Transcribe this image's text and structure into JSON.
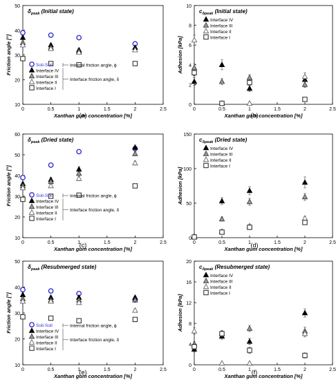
{
  "figure": {
    "panel_letters": [
      "(a)",
      "(b)",
      "(c)",
      "(d)",
      "(e)",
      "(f)"
    ],
    "colors": {
      "soil_soil": "#3333cc",
      "marker": "#000000",
      "open_marker": "#555555",
      "axis": "#000000",
      "text": "#000000"
    }
  },
  "chart_data": [
    {
      "panel": "(a)",
      "type": "scatter",
      "title": "δpeak (Initial state)",
      "title_symbol": "δ",
      "title_sub": "peak",
      "title_rest": " (Initial state)",
      "xlabel": "Xanthan gum concentration [%]",
      "ylabel": "Friction angle [°]",
      "xlim": [
        0,
        2.5
      ],
      "ylim": [
        10,
        50
      ],
      "xticks": [
        "0",
        "0.5",
        "1",
        "1.5",
        "2",
        "2.5"
      ],
      "yticks": [
        "10",
        "20",
        "30",
        "40",
        "50"
      ],
      "legend": "left-center",
      "bracket_labels": [
        "Internal friction angle, ϕ",
        "Interface friction angle, δ"
      ],
      "series": [
        {
          "name": "Soil-Soil",
          "marker": "circle-open-blue",
          "x": [
            0,
            0.5,
            1,
            2
          ],
          "y": [
            39,
            38,
            37,
            34.5
          ],
          "err": [
            0.8,
            0.8,
            0.8,
            0.8
          ]
        },
        {
          "name": "Interface IV",
          "marker": "triangle-filled",
          "x": [
            0,
            0.5,
            1,
            2
          ],
          "y": [
            37,
            34,
            32,
            33
          ],
          "err": [
            0.8,
            0.6,
            0.6,
            0.6
          ]
        },
        {
          "name": "Interface III",
          "marker": "triangle-gray",
          "x": [
            0,
            0.5,
            1,
            2
          ],
          "y": [
            35,
            33,
            31.5,
            32
          ],
          "err": [
            0.6,
            0.6,
            0.6,
            0.6
          ]
        },
        {
          "name": "Interface II",
          "marker": "triangle-open",
          "x": [
            0,
            0.5,
            1,
            2
          ],
          "y": [
            34,
            32.5,
            31,
            32
          ],
          "err": [
            0.6,
            0.6,
            0.6,
            0.6
          ]
        },
        {
          "name": "Interface I",
          "marker": "square-open",
          "x": [
            0,
            0.5,
            1,
            2
          ],
          "y": [
            28.5,
            26.5,
            26,
            26.5
          ],
          "err": [
            0.6,
            0.6,
            0.6,
            0.6
          ]
        }
      ]
    },
    {
      "panel": "(b)",
      "type": "scatter",
      "title": "cδpeak (Initial state)",
      "title_symbol": "c",
      "title_sub": "δpeak",
      "title_rest": " (Initial state)",
      "xlabel": "Xanthan gum concentration [%]",
      "ylabel": "Adhesion [kPa]",
      "xlim": [
        0,
        2.5
      ],
      "ylim": [
        0,
        10
      ],
      "xticks": [
        "0",
        "0.5",
        "1",
        "1.5",
        "2",
        "2.5"
      ],
      "yticks": [
        "0",
        "2",
        "4",
        "6",
        "8",
        "10"
      ],
      "legend": "top-center",
      "series": [
        {
          "name": "Interface IV",
          "marker": "triangle-filled",
          "x": [
            0,
            0.5,
            1,
            2
          ],
          "y": [
            2.3,
            4.0,
            1.6,
            2.5
          ],
          "err": [
            0.4,
            0.5,
            0.3,
            0.4
          ]
        },
        {
          "name": "Interface III",
          "marker": "triangle-gray",
          "x": [
            0,
            0.5,
            1,
            2
          ],
          "y": [
            3.7,
            2.3,
            2.7,
            2.0
          ],
          "err": [
            0.4,
            0.3,
            0.3,
            0.3
          ]
        },
        {
          "name": "Interface II",
          "marker": "triangle-open",
          "x": [
            0,
            0.5,
            1,
            2
          ],
          "y": [
            6.5,
            0.1,
            0.1,
            2.8
          ],
          "err": [
            0.5,
            0.1,
            0.1,
            0.4
          ]
        },
        {
          "name": "Interface I",
          "marker": "square-open",
          "x": [
            0,
            0.5,
            1,
            2
          ],
          "y": [
            3.2,
            0.1,
            2.2,
            0.5
          ],
          "err": [
            0.3,
            0.1,
            0.3,
            0.1
          ]
        }
      ]
    },
    {
      "panel": "(c)",
      "type": "scatter",
      "title": "δpeak (Dried state)",
      "title_symbol": "δ",
      "title_sub": "peak",
      "title_rest": " (Dried state)",
      "xlabel": "Xanthan gum concentration [%]",
      "ylabel": "Friction angle [°]",
      "xlim": [
        0,
        2.5
      ],
      "ylim": [
        10,
        60
      ],
      "xticks": [
        "0",
        "0.5",
        "1",
        "1.5",
        "2",
        "2.5"
      ],
      "yticks": [
        "10",
        "20",
        "30",
        "40",
        "50",
        "60"
      ],
      "legend": "bottom-left",
      "bracket_labels": [
        "Internal friction angle, ϕ",
        "Interface friction angle, δ"
      ],
      "series": [
        {
          "name": "Soil-Soil",
          "marker": "circle-open-blue",
          "x": [
            0,
            0.5,
            1,
            2
          ],
          "y": [
            39,
            45,
            51.5,
            53
          ],
          "err": [
            0.8,
            1.0,
            1.0,
            1.0
          ]
        },
        {
          "name": "Interface IV",
          "marker": "triangle-filled",
          "x": [
            0,
            0.5,
            1,
            2
          ],
          "y": [
            36,
            38,
            43,
            53.5
          ],
          "err": [
            0.8,
            1.0,
            1.2,
            1.2
          ]
        },
        {
          "name": "Interface III",
          "marker": "triangle-gray",
          "x": [
            0,
            0.5,
            1,
            2
          ],
          "y": [
            35,
            37,
            41,
            50.5
          ],
          "err": [
            0.8,
            1.0,
            1.0,
            1.0
          ]
        },
        {
          "name": "Interface II",
          "marker": "triangle-open",
          "x": [
            0,
            0.5,
            1,
            2
          ],
          "y": [
            34,
            35,
            38.5,
            46
          ],
          "err": [
            0.6,
            0.8,
            1.0,
            1.0
          ]
        },
        {
          "name": "Interface I",
          "marker": "square-open",
          "x": [
            0,
            0.5,
            1,
            2
          ],
          "y": [
            28.5,
            30,
            30.5,
            35
          ],
          "err": [
            0.6,
            0.8,
            0.8,
            0.8
          ]
        }
      ]
    },
    {
      "panel": "(d)",
      "type": "scatter",
      "title": "cδpeak (Dried state)",
      "title_symbol": "c",
      "title_sub": "δpeak",
      "title_rest": " (Dried state)",
      "xlabel": "Xanthan gum concentration [%]",
      "ylabel": "Adhesion [kPa]",
      "xlim": [
        0,
        2.5
      ],
      "ylim": [
        0,
        150
      ],
      "xticks": [
        "0",
        "0.5",
        "1",
        "1.5",
        "2",
        "2.5"
      ],
      "yticks": [
        "0",
        "50",
        "100",
        "150"
      ],
      "legend": "top-center",
      "series": [
        {
          "name": "Interface IV",
          "marker": "triangle-filled",
          "x": [
            0,
            0.5,
            1,
            2
          ],
          "y": [
            2,
            53,
            68,
            80
          ],
          "err": [
            1,
            5,
            6,
            8
          ]
        },
        {
          "name": "Interface III",
          "marker": "triangle-gray",
          "x": [
            0,
            0.5,
            1,
            2
          ],
          "y": [
            2,
            27,
            52,
            59
          ],
          "err": [
            1,
            3,
            5,
            5
          ]
        },
        {
          "name": "Interface II",
          "marker": "triangle-open",
          "x": [
            0,
            0.5,
            1,
            2
          ],
          "y": [
            1,
            9,
            17,
            28
          ],
          "err": [
            1,
            2,
            2,
            3
          ]
        },
        {
          "name": "Interface I",
          "marker": "square-open",
          "x": [
            0,
            0.5,
            1,
            2
          ],
          "y": [
            1,
            8,
            15,
            22
          ],
          "err": [
            1,
            2,
            2,
            2
          ]
        }
      ]
    },
    {
      "panel": "(e)",
      "type": "scatter",
      "title": "δpeak (Resubmerged state)",
      "title_symbol": "δ",
      "title_sub": "peak",
      "title_rest": " (Resubmerged state)",
      "xlabel": "Xanthan gum concentration [%]",
      "ylabel": "Friction angle [°]",
      "xlim": [
        0,
        2.5
      ],
      "ylim": [
        10,
        50
      ],
      "xticks": [
        "0",
        "0.5",
        "1",
        "1.5",
        "2",
        "2.5"
      ],
      "yticks": [
        "10",
        "20",
        "30",
        "40",
        "50"
      ],
      "legend": "left-center",
      "bracket_labels": [
        "Internal friction angle, ϕ",
        "Interface friction angle, δ"
      ],
      "series": [
        {
          "name": "Soil-Soil",
          "marker": "circle-open-blue",
          "x": [
            0,
            0.5,
            1,
            2
          ],
          "y": [
            39,
            38.5,
            37.5,
            35
          ],
          "err": [
            0.8,
            0.8,
            0.8,
            0.8
          ]
        },
        {
          "name": "Interface IV",
          "marker": "triangle-filled",
          "x": [
            0,
            0.5,
            1,
            2
          ],
          "y": [
            37,
            36,
            36,
            36
          ],
          "err": [
            0.8,
            0.6,
            0.6,
            0.6
          ]
        },
        {
          "name": "Interface III",
          "marker": "triangle-gray",
          "x": [
            0,
            0.5,
            1,
            2
          ],
          "y": [
            35.5,
            35,
            35,
            35
          ],
          "err": [
            0.6,
            0.6,
            0.6,
            0.6
          ]
        },
        {
          "name": "Interface II",
          "marker": "triangle-open",
          "x": [
            0,
            0.5,
            1,
            2
          ],
          "y": [
            34.5,
            34.5,
            34,
            31
          ],
          "err": [
            0.6,
            0.6,
            0.6,
            0.6
          ]
        },
        {
          "name": "Interface I",
          "marker": "square-open",
          "x": [
            0,
            0.5,
            1,
            2
          ],
          "y": [
            28.5,
            28,
            27,
            27.5
          ],
          "err": [
            0.6,
            0.6,
            0.6,
            0.6
          ]
        }
      ]
    },
    {
      "panel": "(f)",
      "type": "scatter",
      "title": "cδpeak (Resubmerged state)",
      "title_symbol": "c",
      "title_sub": "δpeak",
      "title_rest": " (Resubmerged state)",
      "xlabel": "Xanthan gum concentration [%]",
      "ylabel": "Adhesion [kPa]",
      "xlim": [
        0,
        2.5
      ],
      "ylim": [
        0,
        20
      ],
      "xticks": [
        "0",
        "0.5",
        "1",
        "1.5",
        "2",
        "2.5"
      ],
      "yticks": [
        "0",
        "4",
        "8",
        "12",
        "16",
        "20"
      ],
      "legend": "top-center",
      "series": [
        {
          "name": "Interface IV",
          "marker": "triangle-filled",
          "x": [
            0,
            0.5,
            1,
            2
          ],
          "y": [
            3,
            5.5,
            4.5,
            10
          ],
          "err": [
            0.5,
            0.6,
            0.6,
            0.8
          ]
        },
        {
          "name": "Interface III",
          "marker": "triangle-gray",
          "x": [
            0,
            0.5,
            1,
            2
          ],
          "y": [
            4,
            6,
            7,
            6.5
          ],
          "err": [
            0.5,
            0.6,
            0.6,
            0.8
          ]
        },
        {
          "name": "Interface II",
          "marker": "triangle-open",
          "x": [
            0,
            0.5,
            1,
            2
          ],
          "y": [
            6.5,
            0.3,
            0.3,
            6
          ],
          "err": [
            0.6,
            0.2,
            0.2,
            0.6
          ]
        },
        {
          "name": "Interface I",
          "marker": "square-open",
          "x": [
            0,
            0.5,
            1,
            2
          ],
          "y": [
            3.5,
            6,
            2.8,
            1.8
          ],
          "err": [
            0.5,
            0.6,
            0.6,
            0.5
          ]
        }
      ]
    }
  ]
}
